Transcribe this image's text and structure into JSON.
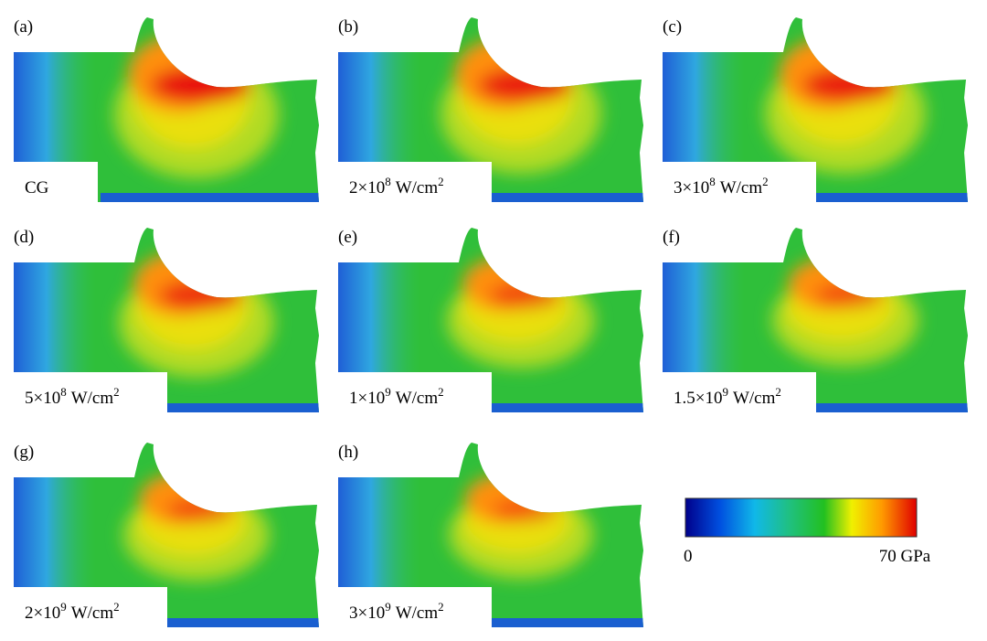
{
  "panels": [
    {
      "letter": "(a)",
      "label": {
        "text": "CG"
      }
    },
    {
      "letter": "(b)",
      "label": {
        "base": "2×10",
        "exp": "8",
        "unit": "W/cm",
        "unit_exp": "2"
      }
    },
    {
      "letter": "(c)",
      "label": {
        "base": "3×10",
        "exp": "8",
        "unit": "W/cm",
        "unit_exp": "2"
      }
    },
    {
      "letter": "(d)",
      "label": {
        "base": "5×10",
        "exp": "8",
        "unit": "W/cm",
        "unit_exp": "2"
      }
    },
    {
      "letter": "(e)",
      "label": {
        "base": "1×10",
        "exp": "9",
        "unit": "W/cm",
        "unit_exp": "2"
      }
    },
    {
      "letter": "(f)",
      "label": {
        "base": "1.5×10",
        "exp": "9",
        "unit": "W/cm",
        "unit_exp": "2"
      }
    },
    {
      "letter": "(g)",
      "label": {
        "base": "2×10",
        "exp": "9",
        "unit": "W/cm",
        "unit_exp": "2"
      }
    },
    {
      "letter": "(h)",
      "label": {
        "base": "3×10",
        "exp": "9",
        "unit": "W/cm",
        "unit_exp": "2"
      }
    }
  ],
  "colorbar": {
    "min_label": "0",
    "max_label": "70 GPa"
  }
}
